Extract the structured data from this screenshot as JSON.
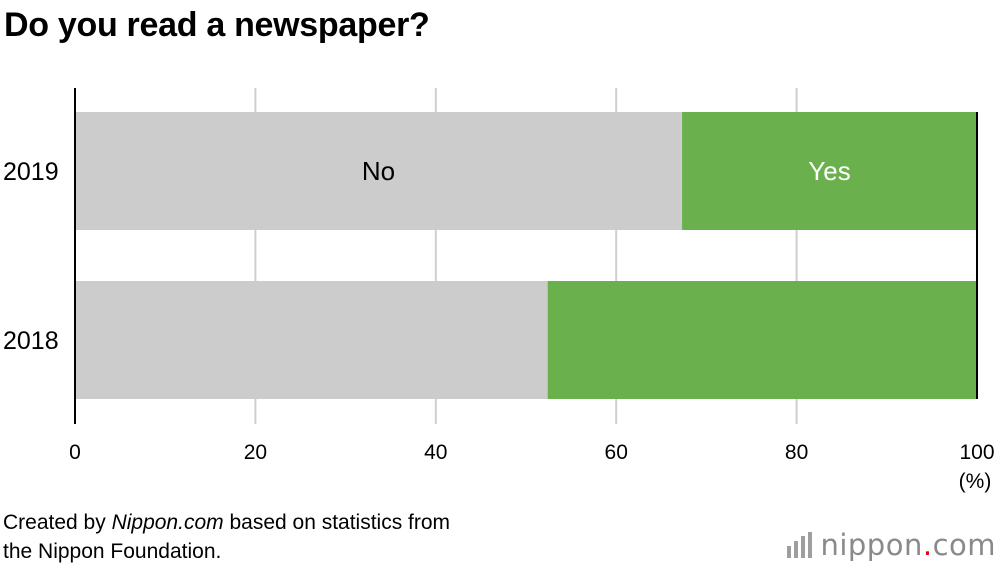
{
  "title": "Do you read a newspaper?",
  "chart_data": {
    "type": "bar",
    "orientation": "horizontal",
    "stacked": true,
    "categories": [
      "2019",
      "2018"
    ],
    "series": [
      {
        "name": "No",
        "values": [
          67.3,
          52.4
        ],
        "color": "#cccccc"
      },
      {
        "name": "Yes",
        "values": [
          32.7,
          47.6
        ],
        "color": "#6ab04c"
      }
    ],
    "xlim": [
      0,
      100
    ],
    "xticks": [
      "0",
      "20",
      "40",
      "60",
      "80",
      "100"
    ],
    "x_unit": "(%)",
    "grid": true
  },
  "source": {
    "prefix": "Created by ",
    "site": "Nippon.com",
    "suffix": " based on statistics from",
    "line2": "the Nippon Foundation."
  },
  "logo": {
    "word": "nippon",
    "dot": ".",
    "tld": "com",
    "bar_color": "#9e9e9e",
    "dot_color": "#e60012"
  }
}
